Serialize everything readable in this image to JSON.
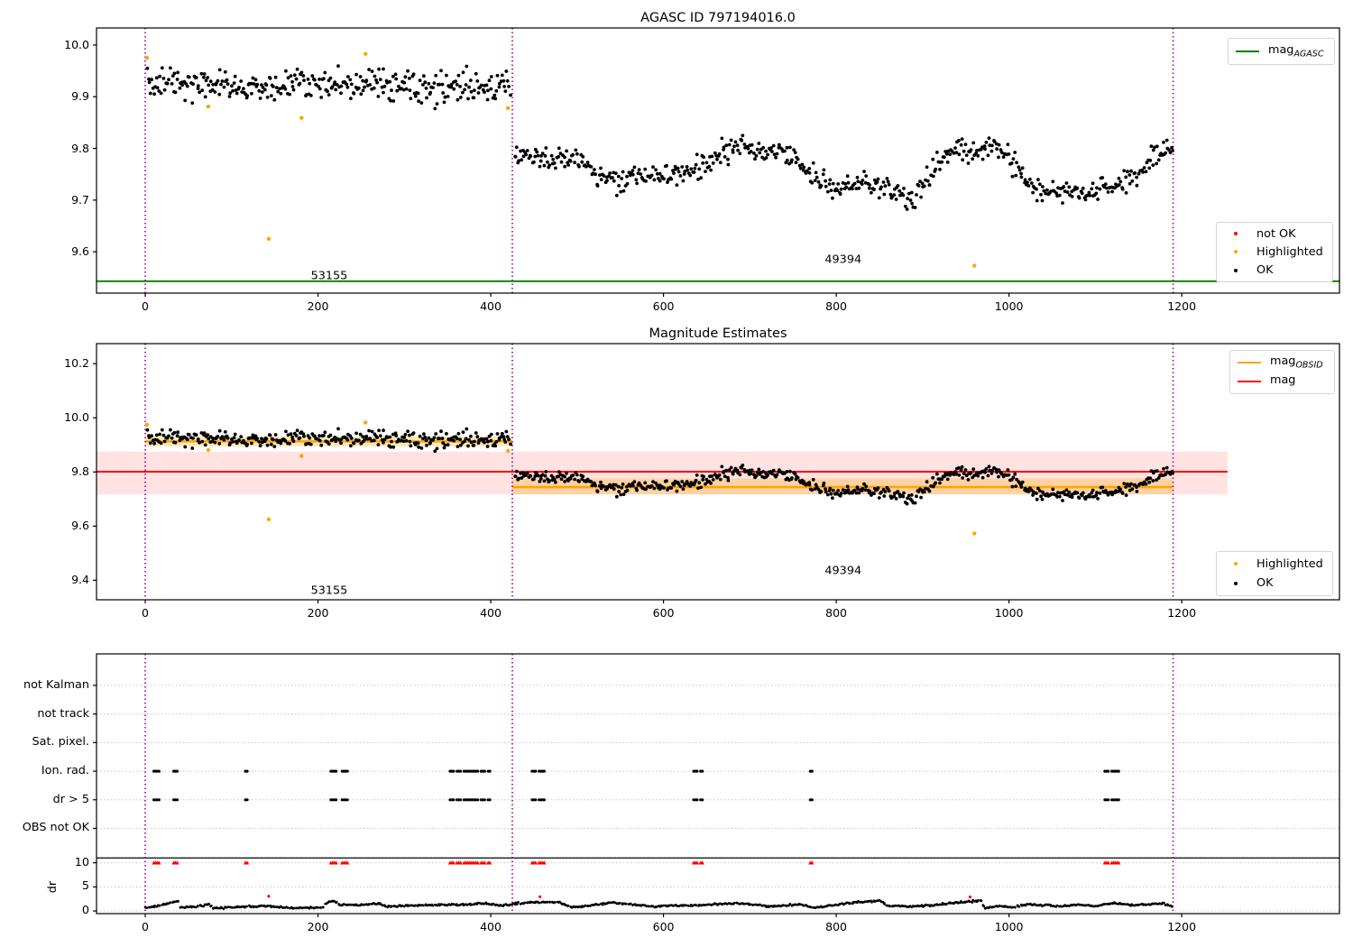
{
  "seed": 11,
  "colors": {
    "ok": "#000000",
    "highlighted": "#ffa500",
    "not_ok": "#ff0000",
    "mag_agasc_line": "#008000",
    "mag_obsid_line": "#ffa500",
    "mag_line": "#ff0000",
    "vline": "#990099",
    "grid": "#c8c8c8",
    "spine": "#000000"
  },
  "chart_data": [
    {
      "type": "scatter",
      "title": "AGASC ID 797194016.0",
      "xlim": [
        -56.4,
        1382.6
      ],
      "ylim": [
        9.52,
        10.033
      ],
      "xticks": [
        0,
        200,
        400,
        600,
        800,
        1000,
        1200
      ],
      "xtick_labels": [
        "0",
        "200",
        "400",
        "600",
        "800",
        "1000",
        "1200"
      ],
      "yticks": [
        10.0,
        9.9,
        9.8,
        9.7,
        9.6
      ],
      "ytick_labels": [
        "10.0",
        "9.9",
        "9.8",
        "9.7",
        "9.6"
      ],
      "vlines": [
        0,
        425,
        1190
      ],
      "hline": {
        "value": 9.543,
        "color": "#008000"
      },
      "annotations": [
        {
          "text": "53155",
          "x": 213,
          "y": 9.553
        },
        {
          "text": "49394",
          "x": 808,
          "y": 9.585
        }
      ],
      "legend_line": {
        "items": [
          {
            "main": "mag",
            "sub": "AGASC",
            "color": "#008000"
          }
        ]
      },
      "legend_markers": {
        "items": [
          {
            "label": "not OK",
            "color": "#ff0000"
          },
          {
            "label": "Highlighted",
            "color": "#ffa500"
          },
          {
            "label": "OK",
            "color": "#000000"
          }
        ]
      },
      "series": {
        "segments": [
          {
            "x_start": 2,
            "x_end": 423,
            "n": 320,
            "noise": 0.016,
            "trend": [
              [
                0,
                9.938
              ],
              [
                12,
                9.928
              ],
              [
                60,
                9.922
              ],
              [
                120,
                9.92
              ],
              [
                180,
                9.924
              ],
              [
                240,
                9.922
              ],
              [
                300,
                9.92
              ],
              [
                360,
                9.918
              ],
              [
                423,
                9.912
              ]
            ]
          },
          {
            "x_start": 427,
            "x_end": 1190,
            "n": 560,
            "noise": 0.011,
            "trend": [
              [
                427,
                9.79
              ],
              [
                460,
                9.782
              ],
              [
                500,
                9.776
              ],
              [
                525,
                9.745
              ],
              [
                550,
                9.732
              ],
              [
                575,
                9.748
              ],
              [
                605,
                9.742
              ],
              [
                630,
                9.756
              ],
              [
                655,
                9.772
              ],
              [
                670,
                9.795
              ],
              [
                700,
                9.798
              ],
              [
                720,
                9.79
              ],
              [
                740,
                9.796
              ],
              [
                755,
                9.775
              ],
              [
                775,
                9.745
              ],
              [
                795,
                9.722
              ],
              [
                815,
                9.728
              ],
              [
                835,
                9.73
              ],
              [
                855,
                9.724
              ],
              [
                875,
                9.705
              ],
              [
                888,
                9.697
              ],
              [
                900,
                9.72
              ],
              [
                915,
                9.77
              ],
              [
                930,
                9.788
              ],
              [
                945,
                9.798
              ],
              [
                958,
                9.79
              ],
              [
                972,
                9.8
              ],
              [
                988,
                9.805
              ],
              [
                1000,
                9.78
              ],
              [
                1015,
                9.752
              ],
              [
                1030,
                9.722
              ],
              [
                1045,
                9.712
              ],
              [
                1060,
                9.722
              ],
              [
                1075,
                9.716
              ],
              [
                1090,
                9.71
              ],
              [
                1105,
                9.72
              ],
              [
                1120,
                9.726
              ],
              [
                1135,
                9.74
              ],
              [
                1150,
                9.752
              ],
              [
                1165,
                9.775
              ],
              [
                1178,
                9.795
              ],
              [
                1190,
                9.802
              ]
            ]
          }
        ],
        "highlighted": [
          [
            2,
            9.975
          ],
          [
            73,
            9.881
          ],
          [
            143,
            9.625
          ],
          [
            181,
            9.859
          ],
          [
            255,
            9.983
          ],
          [
            420,
            9.878
          ],
          [
            960,
            9.573
          ]
        ]
      }
    },
    {
      "type": "scatter",
      "title": "Magnitude Estimates",
      "xlim": [
        -56.4,
        1382.6
      ],
      "ylim": [
        9.328,
        10.274
      ],
      "xticks": [
        0,
        200,
        400,
        600,
        800,
        1000,
        1200
      ],
      "xtick_labels": [
        "0",
        "200",
        "400",
        "600",
        "800",
        "1000",
        "1200"
      ],
      "yticks": [
        10.2,
        10.0,
        9.8,
        9.6,
        9.4
      ],
      "ytick_labels": [
        "10.2",
        "10.0",
        "9.8",
        "9.6",
        "9.4"
      ],
      "vlines": [
        0,
        425,
        1190
      ],
      "mag_line": {
        "value": 9.801,
        "band": [
          9.717,
          9.875
        ],
        "x_start": -56.4,
        "x_end": 1253,
        "color": "#ff0000",
        "band_alpha": 0.11
      },
      "obsid_segments": [
        {
          "x_start": 0,
          "x_end": 425,
          "value": 9.913,
          "band": [
            9.895,
            9.931
          ]
        },
        {
          "x_start": 425,
          "x_end": 1190,
          "value": 9.744,
          "band": [
            9.718,
            9.776
          ]
        }
      ],
      "annotations": [
        {
          "text": "53155",
          "x": 213,
          "y": 9.36
        },
        {
          "text": "49394",
          "x": 808,
          "y": 9.435
        }
      ],
      "legend_line": {
        "items": [
          {
            "main": "mag",
            "sub": "OBSID",
            "color": "#ffa500"
          },
          {
            "main": "mag",
            "sub": "",
            "color": "#ff0000"
          }
        ]
      },
      "legend_markers": {
        "items": [
          {
            "label": "Highlighted",
            "color": "#ffa500"
          },
          {
            "label": "OK",
            "color": "#000000"
          }
        ]
      },
      "series_same_as_top": true
    },
    {
      "type": "flags",
      "rows": [
        "not Kalman",
        "not track",
        "Sat. pixel.",
        "Ion. rad.",
        "dr > 5",
        "OBS not OK"
      ],
      "row_values": [
        46.77,
        40.84,
        34.91,
        28.98,
        23.05,
        17.12
      ],
      "rows_with_points": [
        3,
        4
      ],
      "xlim": [
        -56.4,
        1382.6
      ],
      "ylim": [
        -0.55,
        53.3
      ],
      "xticks": [
        0,
        200,
        400,
        600,
        800,
        1000,
        1200
      ],
      "xtick_labels": [
        "0",
        "200",
        "400",
        "600",
        "800",
        "1000",
        "1200"
      ],
      "dr_ticks": [
        10,
        5,
        0
      ],
      "dr_tick_labels": [
        "10",
        "5",
        "0"
      ],
      "dr_axis_label": "dr",
      "separator_value": 11.0,
      "vlines": [
        0,
        425,
        1190
      ],
      "flag_xs": [
        10,
        12,
        14,
        16,
        33,
        35,
        37,
        116,
        118,
        215,
        217,
        219,
        221,
        228,
        230,
        232,
        234,
        353,
        355,
        357,
        361,
        363,
        365,
        369,
        371,
        373,
        375,
        377,
        379,
        381,
        383,
        385,
        389,
        391,
        393,
        397,
        399,
        448,
        450,
        452,
        456,
        458,
        460,
        462,
        635,
        637,
        639,
        643,
        645,
        770,
        772,
        1111,
        1113,
        1115,
        1119,
        1121,
        1123,
        1125,
        1127
      ],
      "dr_clip_value": 10,
      "dr_outliers": [
        [
          143,
          3.05
        ],
        [
          457,
          2.95
        ],
        [
          955,
          2.9
        ]
      ],
      "dr_trace": {
        "x_start": 0,
        "x_end": 1190,
        "n": 780,
        "noise": 0.09,
        "trend": [
          [
            0,
            0.6
          ],
          [
            15,
            1.1
          ],
          [
            35,
            1.9
          ],
          [
            38,
            2.1
          ],
          [
            40,
            0.7
          ],
          [
            55,
            0.8
          ],
          [
            75,
            1.4
          ],
          [
            78,
            0.6
          ],
          [
            95,
            0.7
          ],
          [
            110,
            0.9
          ],
          [
            140,
            1.0
          ],
          [
            170,
            0.62
          ],
          [
            205,
            0.7
          ],
          [
            212,
            1.95
          ],
          [
            218,
            2.0
          ],
          [
            225,
            1.3
          ],
          [
            248,
            1.25
          ],
          [
            270,
            1.6
          ],
          [
            278,
            1.0
          ],
          [
            300,
            1.1
          ],
          [
            330,
            1.25
          ],
          [
            360,
            1.3
          ],
          [
            395,
            1.6
          ],
          [
            410,
            1.1
          ],
          [
            422,
            1.3
          ],
          [
            428,
            1.5
          ],
          [
            445,
            1.75
          ],
          [
            460,
            1.8
          ],
          [
            478,
            1.85
          ],
          [
            492,
            0.8
          ],
          [
            505,
            1.0
          ],
          [
            522,
            1.3
          ],
          [
            538,
            1.7
          ],
          [
            556,
            1.5
          ],
          [
            572,
            1.25
          ],
          [
            590,
            0.85
          ],
          [
            610,
            1.2
          ],
          [
            628,
            1.05
          ],
          [
            648,
            1.3
          ],
          [
            668,
            1.5
          ],
          [
            688,
            1.6
          ],
          [
            705,
            1.4
          ],
          [
            722,
            0.95
          ],
          [
            740,
            1.1
          ],
          [
            758,
            1.4
          ],
          [
            772,
            0.65
          ],
          [
            790,
            1.05
          ],
          [
            812,
            1.6
          ],
          [
            832,
            1.9
          ],
          [
            852,
            2.1
          ],
          [
            858,
            1.1
          ],
          [
            872,
            1.05
          ],
          [
            890,
            0.9
          ],
          [
            912,
            1.2
          ],
          [
            932,
            1.6
          ],
          [
            950,
            1.9
          ],
          [
            968,
            2.15
          ],
          [
            972,
            0.6
          ],
          [
            988,
            1.0
          ],
          [
            1005,
            0.8
          ],
          [
            1022,
            1.35
          ],
          [
            1042,
            1.2
          ],
          [
            1060,
            0.95
          ],
          [
            1080,
            1.3
          ],
          [
            1100,
            1.05
          ],
          [
            1122,
            1.65
          ],
          [
            1142,
            1.15
          ],
          [
            1162,
            1.4
          ],
          [
            1178,
            1.55
          ],
          [
            1190,
            0.9
          ]
        ]
      }
    }
  ]
}
